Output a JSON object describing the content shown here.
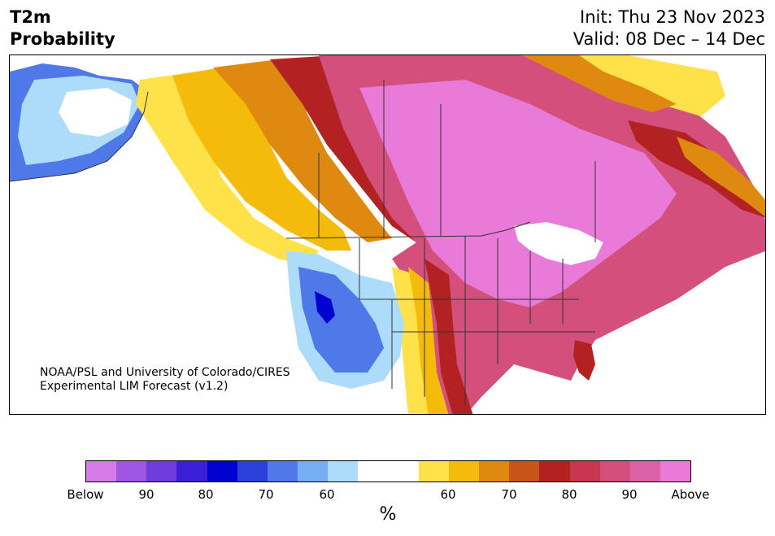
{
  "title": {
    "line1": "T2m",
    "line2": "Probability"
  },
  "info": {
    "init": "Init: Thu 23 Nov 2023",
    "valid": "Valid: 08 Dec – 14 Dec"
  },
  "credit": {
    "line1": "NOAA/PSL and University of Colorado/CIRES",
    "line2": "Experimental LIM Forecast (v1.2)"
  },
  "colorbar": {
    "units": "%",
    "colors": [
      "#d67ae8",
      "#9e55e0",
      "#6e3ddb",
      "#3a1fd6",
      "#0000d0",
      "#2b3fdb",
      "#4f78e8",
      "#75aef2",
      "#addcfb",
      "#ffffff",
      "#ffffff",
      "#ffe14a",
      "#f5bb0a",
      "#de8a10",
      "#c9541a",
      "#b22222",
      "#c93650",
      "#d4507c",
      "#dc62a8",
      "#e87ad8"
    ],
    "ticks": [
      "Below",
      "90",
      "80",
      "70",
      "60",
      "60",
      "70",
      "80",
      "90",
      "Above"
    ]
  },
  "regions": {
    "strong_below": "#0000d0",
    "below": "#4f78e8",
    "weak_below": "#addcfb",
    "neutral": "#ffffff",
    "weak_above": "#ffe14a",
    "mod_above": "#f5bb0a",
    "above": "#de8a10",
    "strong_above": "#b22222",
    "very_above": "#d4507c",
    "extreme_above": "#e87ad8"
  }
}
